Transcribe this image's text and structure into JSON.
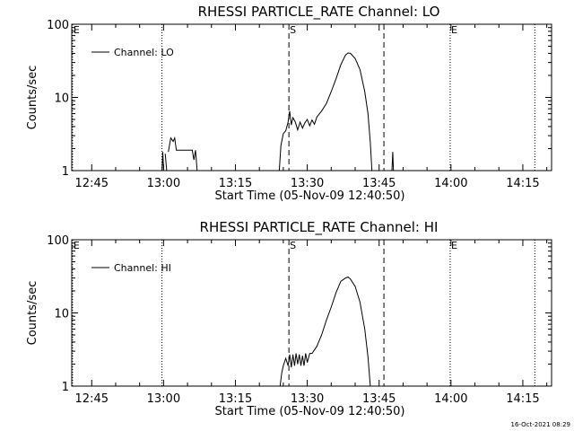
{
  "chart_data": [
    {
      "type": "line",
      "title": "RHESSI PARTICLE_RATE Channel: LO",
      "xlabel": "Start Time (05-Nov-09 12:40:50)",
      "ylabel": "Counts/sec",
      "yscale": "log",
      "ylim": [
        1,
        100
      ],
      "xlim": [
        "12:40:50",
        "14:21:00"
      ],
      "x_ticks": [
        "12:45",
        "13:00",
        "13:15",
        "13:30",
        "13:45",
        "14:00",
        "14:15"
      ],
      "y_ticks": [
        "1",
        "10",
        "100"
      ],
      "legend": {
        "position": "top-left",
        "entries": [
          "Channel: LO"
        ]
      },
      "series": [
        {
          "name": "Channel: LO",
          "points": [
            [
              "12:59:40",
              1
            ],
            [
              "12:59:50",
              1.8
            ],
            [
              "13:00:00",
              1
            ],
            [
              "13:00:20",
              1.7
            ],
            [
              "13:00:40",
              1
            ],
            [
              "13:01:00",
              1.8
            ],
            [
              "13:01:30",
              2.8
            ],
            [
              "13:02:00",
              2.5
            ],
            [
              "13:02:20",
              2.8
            ],
            [
              "13:02:40",
              1.9
            ],
            [
              "13:06:00",
              1.9
            ],
            [
              "13:06:20",
              1.4
            ],
            [
              "13:06:40",
              1.9
            ],
            [
              "13:07:00",
              1
            ],
            [
              "13:24:10",
              1
            ],
            [
              "13:24:30",
              2.2
            ],
            [
              "13:25:00",
              3.2
            ],
            [
              "13:25:30",
              3.5
            ],
            [
              "13:26:00",
              4.6
            ],
            [
              "13:26:20",
              6.5
            ],
            [
              "13:26:40",
              4.2
            ],
            [
              "13:27:00",
              5.3
            ],
            [
              "13:27:30",
              4.6
            ],
            [
              "13:28:00",
              3.6
            ],
            [
              "13:28:30",
              4.6
            ],
            [
              "13:29:00",
              3.8
            ],
            [
              "13:29:30",
              4.5
            ],
            [
              "13:30:00",
              5
            ],
            [
              "13:30:30",
              4.1
            ],
            [
              "13:31:00",
              4.9
            ],
            [
              "13:31:30",
              4.3
            ],
            [
              "13:32:00",
              5.4
            ],
            [
              "13:33:00",
              6.5
            ],
            [
              "13:34:00",
              8.3
            ],
            [
              "13:35:00",
              12
            ],
            [
              "13:36:00",
              18
            ],
            [
              "13:37:00",
              28
            ],
            [
              "13:38:00",
              38
            ],
            [
              "13:38:30",
              40.5
            ],
            [
              "13:39:00",
              40
            ],
            [
              "13:40:00",
              34
            ],
            [
              "13:41:00",
              24
            ],
            [
              "13:42:00",
              12
            ],
            [
              "13:42:40",
              6
            ],
            [
              "13:43:10",
              2.4
            ],
            [
              "13:43:30",
              1
            ],
            [
              "13:47:40",
              1
            ],
            [
              "13:47:50",
              1.8
            ],
            [
              "13:48:00",
              1
            ]
          ]
        }
      ],
      "vlines": [
        {
          "time": "12:41:00",
          "style": "dotted",
          "label": "E"
        },
        {
          "time": "12:59:40",
          "style": "dotted",
          "label": ""
        },
        {
          "time": "13:26:10",
          "style": "dashed",
          "label": "S"
        },
        {
          "time": "13:46:00",
          "style": "dashed",
          "label": ""
        },
        {
          "time": "13:59:50",
          "style": "dotted",
          "label": "E"
        },
        {
          "time": "14:17:30",
          "style": "dotted",
          "label": ""
        }
      ]
    },
    {
      "type": "line",
      "title": "RHESSI PARTICLE_RATE Channel: HI",
      "xlabel": "Start Time (05-Nov-09 12:40:50)",
      "ylabel": "Counts/sec",
      "yscale": "log",
      "ylim": [
        1,
        100
      ],
      "xlim": [
        "12:40:50",
        "14:21:00"
      ],
      "x_ticks": [
        "12:45",
        "13:00",
        "13:15",
        "13:30",
        "13:45",
        "14:00",
        "14:15"
      ],
      "y_ticks": [
        "1",
        "10",
        "100"
      ],
      "legend": {
        "position": "top-left",
        "entries": [
          "Channel: HI"
        ]
      },
      "series": [
        {
          "name": "Channel: HI",
          "points": [
            [
              "13:24:20",
              1
            ],
            [
              "13:24:40",
              1.5
            ],
            [
              "13:25:00",
              1.9
            ],
            [
              "13:25:30",
              2.4
            ],
            [
              "13:26:00",
              1.9
            ],
            [
              "13:26:20",
              2.7
            ],
            [
              "13:26:40",
              1.8
            ],
            [
              "13:27:00",
              2.7
            ],
            [
              "13:27:20",
              1.9
            ],
            [
              "13:27:40",
              2.8
            ],
            [
              "13:28:00",
              2
            ],
            [
              "13:28:20",
              2.7
            ],
            [
              "13:28:40",
              1.9
            ],
            [
              "13:29:00",
              2.6
            ],
            [
              "13:29:20",
              1.9
            ],
            [
              "13:29:40",
              2.8
            ],
            [
              "13:30:00",
              2.1
            ],
            [
              "13:30:30",
              2.8
            ],
            [
              "13:31:00",
              2.8
            ],
            [
              "13:32:00",
              3.5
            ],
            [
              "13:33:00",
              5
            ],
            [
              "13:34:00",
              8
            ],
            [
              "13:35:00",
              12
            ],
            [
              "13:36:00",
              19
            ],
            [
              "13:37:00",
              27
            ],
            [
              "13:38:00",
              30
            ],
            [
              "13:38:30",
              31
            ],
            [
              "13:39:00",
              29
            ],
            [
              "13:40:00",
              23
            ],
            [
              "13:41:00",
              14
            ],
            [
              "13:42:00",
              6
            ],
            [
              "13:42:40",
              2.5
            ],
            [
              "13:43:10",
              1
            ]
          ]
        }
      ],
      "vlines": [
        {
          "time": "12:41:00",
          "style": "dotted",
          "label": "E"
        },
        {
          "time": "12:59:40",
          "style": "dotted",
          "label": ""
        },
        {
          "time": "13:26:10",
          "style": "dashed",
          "label": "S"
        },
        {
          "time": "13:46:00",
          "style": "dashed",
          "label": ""
        },
        {
          "time": "13:59:50",
          "style": "dotted",
          "label": "E"
        },
        {
          "time": "14:17:30",
          "style": "dotted",
          "label": ""
        }
      ]
    }
  ],
  "footer_timestamp": "16-Oct-2021 08:29"
}
